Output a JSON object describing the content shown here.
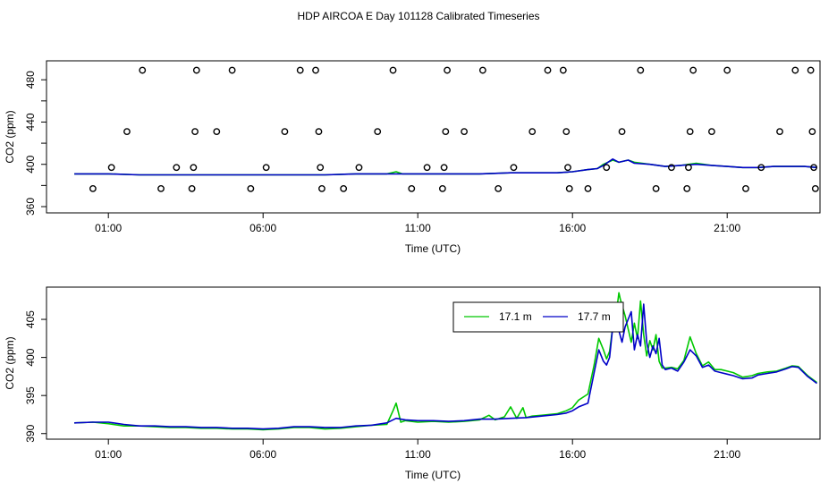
{
  "title": "HDP AIRCOA E  Day 101128  Calibrated Timeseries",
  "colors": {
    "green": "#00c800",
    "blue": "#0000c8",
    "axis": "#000000"
  },
  "chart_data": [
    {
      "type": "scatter",
      "xlabel": "Time (UTC)",
      "ylabel": "CO2 (ppm)",
      "xlim": [
        -1,
        24
      ],
      "ylim": [
        360,
        492
      ],
      "xticks": [
        1,
        6,
        11,
        16,
        21
      ],
      "xtick_labels": [
        "01:00",
        "06:00",
        "11:00",
        "16:00",
        "21:00"
      ],
      "yticks": [
        360,
        380,
        400,
        420,
        440,
        460,
        480
      ],
      "ytick_labels": [
        "360",
        "",
        "400",
        "",
        "440",
        "",
        "480"
      ],
      "points": [
        [
          0.5,
          377
        ],
        [
          1.1,
          397
        ],
        [
          1.6,
          431
        ],
        [
          2.1,
          489
        ],
        [
          2.7,
          377
        ],
        [
          3.2,
          397
        ],
        [
          3.7,
          377
        ],
        [
          3.75,
          397
        ],
        [
          3.8,
          431
        ],
        [
          3.85,
          489
        ],
        [
          4.5,
          431
        ],
        [
          5.0,
          489
        ],
        [
          5.6,
          377
        ],
        [
          6.1,
          397
        ],
        [
          6.7,
          431
        ],
        [
          7.2,
          489
        ],
        [
          7.7,
          489
        ],
        [
          7.8,
          431
        ],
        [
          7.85,
          397
        ],
        [
          7.9,
          377
        ],
        [
          8.6,
          377
        ],
        [
          9.1,
          397
        ],
        [
          9.7,
          431
        ],
        [
          10.2,
          489
        ],
        [
          10.8,
          377
        ],
        [
          11.3,
          397
        ],
        [
          11.8,
          377
        ],
        [
          11.85,
          397
        ],
        [
          11.9,
          431
        ],
        [
          11.95,
          489
        ],
        [
          12.5,
          431
        ],
        [
          13.1,
          489
        ],
        [
          13.6,
          377
        ],
        [
          14.1,
          397
        ],
        [
          14.7,
          431
        ],
        [
          15.2,
          489
        ],
        [
          15.7,
          489
        ],
        [
          15.8,
          431
        ],
        [
          15.85,
          397
        ],
        [
          15.9,
          377
        ],
        [
          16.5,
          377
        ],
        [
          17.1,
          397
        ],
        [
          17.6,
          431
        ],
        [
          18.2,
          489
        ],
        [
          18.7,
          377
        ],
        [
          19.2,
          397
        ],
        [
          19.7,
          377
        ],
        [
          19.75,
          397
        ],
        [
          19.8,
          431
        ],
        [
          19.9,
          489
        ],
        [
          20.5,
          431
        ],
        [
          21.0,
          489
        ],
        [
          21.6,
          377
        ],
        [
          22.1,
          397
        ],
        [
          22.7,
          431
        ],
        [
          23.2,
          489
        ],
        [
          23.7,
          489
        ],
        [
          23.75,
          431
        ],
        [
          23.8,
          397
        ],
        [
          23.85,
          377
        ]
      ],
      "series": [
        {
          "color": "#00c800",
          "x": [
            -0.1,
            0.5,
            1.0,
            2.0,
            3.0,
            4.0,
            5.0,
            6.0,
            7.0,
            8.0,
            9.0,
            10.0,
            10.3,
            10.5,
            11.0,
            12.0,
            13.0,
            14.0,
            14.8,
            15.5,
            16.0,
            16.5,
            16.8,
            17.0,
            17.3,
            17.5,
            17.8,
            18.0,
            18.5,
            19.0,
            19.5,
            20.0,
            20.5,
            21.0,
            21.5,
            22.0,
            22.5,
            23.0,
            23.5,
            23.9
          ],
          "y": [
            391,
            391,
            391,
            390,
            390,
            390,
            390,
            390,
            390,
            390,
            391,
            391,
            393,
            391,
            391,
            391,
            391,
            392,
            392,
            392,
            393,
            395,
            396,
            400,
            404,
            402,
            404,
            402,
            400,
            398,
            399,
            401,
            399,
            398,
            397,
            397,
            398,
            398,
            398,
            397
          ]
        },
        {
          "color": "#0000c8",
          "x": [
            -0.1,
            0.5,
            1.0,
            2.0,
            3.0,
            4.0,
            5.0,
            6.0,
            7.0,
            8.0,
            9.0,
            10.0,
            10.5,
            11.0,
            12.0,
            13.0,
            14.0,
            14.8,
            15.5,
            16.0,
            16.5,
            16.8,
            17.0,
            17.3,
            17.5,
            17.8,
            18.0,
            18.5,
            19.0,
            19.5,
            20.0,
            20.5,
            21.0,
            21.5,
            22.0,
            22.5,
            23.0,
            23.5,
            23.9
          ],
          "y": [
            391,
            391,
            391,
            390,
            390,
            390,
            390,
            390,
            390,
            390,
            391,
            391,
            391,
            391,
            391,
            391,
            392,
            392,
            392,
            393,
            395,
            396,
            399,
            405,
            402,
            404,
            401,
            400,
            398,
            399,
            400,
            399,
            398,
            397,
            397,
            398,
            398,
            398,
            397
          ]
        }
      ]
    },
    {
      "type": "line",
      "xlabel": "Time (UTC)",
      "ylabel": "CO2 (ppm)",
      "xlim": [
        -1,
        24
      ],
      "ylim": [
        389.5,
        409
      ],
      "xticks": [
        1,
        6,
        11,
        16,
        21
      ],
      "xtick_labels": [
        "01:00",
        "06:00",
        "11:00",
        "16:00",
        "21:00"
      ],
      "yticks": [
        390,
        395,
        400,
        405
      ],
      "ytick_labels": [
        "390",
        "395",
        "400",
        "405"
      ],
      "legend": {
        "position": "top-right",
        "entries": [
          "17.1 m",
          "17.7 m"
        ]
      },
      "series": [
        {
          "name": "17.1 m",
          "color": "#00c800",
          "x": [
            -0.1,
            0.5,
            1.0,
            1.5,
            2.0,
            2.5,
            3.0,
            3.5,
            4.0,
            4.5,
            5.0,
            5.5,
            6.0,
            6.5,
            7.0,
            7.5,
            8.0,
            8.5,
            9.0,
            9.5,
            10.0,
            10.2,
            10.3,
            10.45,
            10.6,
            11.0,
            11.5,
            12.0,
            12.5,
            13.0,
            13.3,
            13.5,
            13.8,
            14.0,
            14.2,
            14.4,
            14.5,
            14.7,
            15.0,
            15.5,
            15.8,
            16.0,
            16.2,
            16.5,
            16.7,
            16.85,
            17.0,
            17.1,
            17.2,
            17.3,
            17.4,
            17.5,
            17.55,
            17.7,
            17.9,
            18.0,
            18.1,
            18.2,
            18.3,
            18.4,
            18.5,
            18.6,
            18.7,
            18.8,
            18.9,
            19.0,
            19.2,
            19.4,
            19.6,
            19.8,
            20.0,
            20.2,
            20.4,
            20.6,
            20.8,
            21.0,
            21.2,
            21.5,
            21.8,
            22.0,
            22.3,
            22.6,
            22.9,
            23.1,
            23.3,
            23.6,
            23.9
          ],
          "y": [
            391.4,
            391.5,
            391.3,
            391.0,
            391.0,
            390.9,
            390.8,
            390.8,
            390.7,
            390.7,
            390.6,
            390.6,
            390.5,
            390.6,
            390.8,
            390.8,
            390.6,
            390.7,
            390.9,
            391.1,
            391.2,
            393.0,
            394.0,
            391.5,
            391.7,
            391.5,
            391.6,
            391.5,
            391.6,
            391.8,
            392.4,
            391.8,
            392.2,
            393.5,
            392.0,
            393.4,
            392.1,
            392.3,
            392.4,
            392.6,
            393.0,
            393.4,
            394.4,
            395.2,
            399.0,
            402.5,
            401.0,
            399.8,
            400.8,
            404.0,
            405.2,
            408.5,
            407.6,
            405.5,
            402.0,
            404.5,
            402.5,
            407.4,
            403.0,
            400.2,
            402.2,
            401.0,
            403.0,
            399.5,
            398.6,
            398.6,
            398.7,
            398.5,
            399.6,
            402.7,
            400.5,
            398.9,
            399.4,
            398.4,
            398.4,
            398.2,
            398.0,
            397.4,
            397.6,
            397.9,
            398.1,
            398.2,
            398.6,
            398.9,
            398.8,
            397.6,
            396.7
          ]
        },
        {
          "name": "17.7 m",
          "color": "#0000c8",
          "x": [
            -0.1,
            0.5,
            1.0,
            1.5,
            2.0,
            2.5,
            3.0,
            3.5,
            4.0,
            4.5,
            5.0,
            5.5,
            6.0,
            6.5,
            7.0,
            7.5,
            8.0,
            8.5,
            9.0,
            9.5,
            10.0,
            10.3,
            10.6,
            11.0,
            11.5,
            12.0,
            12.5,
            13.0,
            13.5,
            14.0,
            14.5,
            15.0,
            15.5,
            15.8,
            16.0,
            16.2,
            16.5,
            16.7,
            16.85,
            17.0,
            17.1,
            17.2,
            17.3,
            17.4,
            17.5,
            17.6,
            17.7,
            17.9,
            18.0,
            18.1,
            18.2,
            18.3,
            18.4,
            18.5,
            18.6,
            18.7,
            18.8,
            18.9,
            19.0,
            19.2,
            19.4,
            19.6,
            19.8,
            20.0,
            20.2,
            20.4,
            20.6,
            20.8,
            21.0,
            21.2,
            21.5,
            21.8,
            22.0,
            22.3,
            22.6,
            22.9,
            23.1,
            23.3,
            23.6,
            23.9
          ],
          "y": [
            391.4,
            391.5,
            391.5,
            391.2,
            391.0,
            391.0,
            390.9,
            390.9,
            390.8,
            390.8,
            390.7,
            390.7,
            390.6,
            390.7,
            390.9,
            390.9,
            390.8,
            390.8,
            391.0,
            391.1,
            391.4,
            392.0,
            391.8,
            391.7,
            391.7,
            391.6,
            391.7,
            391.9,
            391.9,
            392.0,
            392.1,
            392.3,
            392.5,
            392.7,
            393.0,
            393.5,
            394.0,
            398.0,
            401.0,
            399.5,
            399.0,
            400.0,
            404.0,
            406.0,
            403.5,
            402.0,
            404.0,
            406.0,
            401.0,
            403.0,
            401.5,
            407.0,
            402.0,
            400.0,
            401.5,
            400.5,
            402.5,
            399.0,
            398.4,
            398.6,
            398.2,
            399.4,
            401.0,
            400.2,
            398.7,
            399.0,
            398.2,
            398.0,
            397.8,
            397.6,
            397.2,
            397.3,
            397.7,
            397.9,
            398.1,
            398.5,
            398.8,
            398.7,
            397.5,
            396.6
          ]
        }
      ]
    }
  ]
}
